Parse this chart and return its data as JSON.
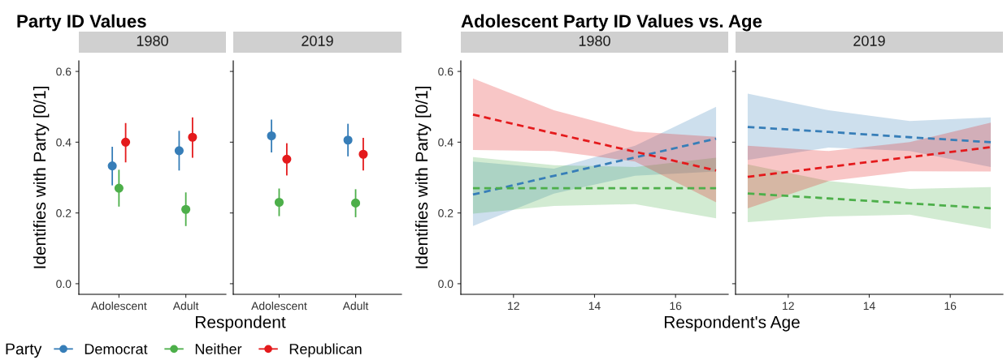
{
  "chart_data": [
    {
      "type": "scatter",
      "title": "Party ID Values",
      "subtitle": "1980",
      "xlabel": "Respondent",
      "ylabel": "Identifies with Party [0/1]",
      "categories": [
        "Adolescent",
        "Adult"
      ],
      "ylim": [
        -0.03,
        0.63
      ],
      "yticks": [
        {
          "value": 0,
          "label": "0.0"
        },
        {
          "value": 0.2,
          "label": "0.2"
        },
        {
          "value": 0.4,
          "label": "0.4"
        },
        {
          "value": 0.6,
          "label": "0.6"
        }
      ],
      "marker": "circle",
      "grid": false,
      "legend": "bottom",
      "legend_title": "Party",
      "series": [
        {
          "name": "Democrat",
          "color": "#377eb8",
          "values": [
            0.333,
            0.376
          ],
          "errors": [
            [
              0.28,
              0.385
            ],
            [
              0.322,
              0.43
            ]
          ]
        },
        {
          "name": "Neither",
          "color": "#4daf4a",
          "values": [
            0.27,
            0.21
          ],
          "errors": [
            [
              0.22,
              0.32
            ],
            [
              0.165,
              0.256
            ]
          ]
        },
        {
          "name": "Republican",
          "color": "#e41a1c",
          "values": [
            0.4,
            0.414
          ],
          "errors": [
            [
              0.345,
              0.452
            ],
            [
              0.358,
              0.468
            ]
          ]
        }
      ]
    },
    {
      "type": "scatter",
      "subtitle": "2019",
      "categories": [
        "Adolescent",
        "Adult"
      ],
      "ylim": [
        -0.03,
        0.63
      ],
      "yticks": [
        {
          "value": 0,
          "label": null
        },
        {
          "value": 0.2,
          "label": null
        },
        {
          "value": 0.4,
          "label": null
        },
        {
          "value": 0.6,
          "label": null
        }
      ],
      "tick_labels": "x",
      "marker": "circle",
      "grid": false,
      "series": [
        {
          "color": "#377eb8",
          "values": [
            0.418,
            0.406
          ],
          "errors": [
            [
              0.373,
              0.462
            ],
            [
              0.362,
              0.45
            ]
          ]
        },
        {
          "color": "#4daf4a",
          "values": [
            0.23,
            0.228
          ],
          "errors": [
            [
              0.193,
              0.267
            ],
            [
              0.19,
              0.265
            ]
          ]
        },
        {
          "color": "#e41a1c",
          "values": [
            0.352,
            0.366
          ],
          "errors": [
            [
              0.308,
              0.395
            ],
            [
              0.322,
              0.41
            ]
          ]
        }
      ]
    },
    {
      "type": "line",
      "title": "Adolescent Party ID Values vs. Age",
      "subtitle": "1980",
      "xlabel": "Respondent's Age",
      "ylabel": "Identifies with Party [0/1]",
      "xlim": [
        10.7,
        17.3
      ],
      "xticks": [
        12,
        14,
        16
      ],
      "ylim": [
        -0.03,
        0.63
      ],
      "yticks": [
        {
          "value": 0,
          "label": "0.0"
        },
        {
          "value": 0.2,
          "label": "0.2"
        },
        {
          "value": 0.4,
          "label": "0.4"
        },
        {
          "value": 0.6,
          "label": "0.6"
        }
      ],
      "line_style": "dashed",
      "grid": false,
      "series": [
        {
          "color": "#377eb8",
          "x": [
            11,
            13,
            15,
            17
          ],
          "values": [
            0.252,
            0.305,
            0.357,
            0.41
          ],
          "lower": [
            0.163,
            0.255,
            0.305,
            0.317
          ],
          "upper": [
            0.345,
            0.325,
            0.39,
            0.5
          ]
        },
        {
          "color": "#4daf4a",
          "x": [
            11,
            13,
            15,
            17
          ],
          "values": [
            0.27,
            0.27,
            0.27,
            0.27
          ],
          "lower": [
            0.198,
            0.22,
            0.225,
            0.185
          ],
          "upper": [
            0.358,
            0.335,
            0.33,
            0.356
          ]
        },
        {
          "color": "#e41a1c",
          "x": [
            11,
            13,
            15,
            17
          ],
          "values": [
            0.478,
            0.425,
            0.373,
            0.32
          ],
          "lower": [
            0.378,
            0.375,
            0.345,
            0.23
          ],
          "upper": [
            0.58,
            0.49,
            0.43,
            0.415
          ]
        }
      ]
    },
    {
      "type": "line",
      "subtitle": "2019",
      "xlim": [
        10.7,
        17.3
      ],
      "xticks": [
        12,
        14,
        16
      ],
      "ylim": [
        -0.03,
        0.63
      ],
      "yticks": [
        {
          "value": 0,
          "label": null
        },
        {
          "value": 0.2,
          "label": null
        },
        {
          "value": 0.4,
          "label": null
        },
        {
          "value": 0.6,
          "label": null
        }
      ],
      "tick_labels": "x",
      "line_style": "dashed",
      "grid": false,
      "series": [
        {
          "color": "#377eb8",
          "x": [
            11,
            13,
            15,
            17
          ],
          "values": [
            0.443,
            0.429,
            0.414,
            0.4
          ],
          "lower": [
            0.35,
            0.385,
            0.375,
            0.33
          ],
          "upper": [
            0.537,
            0.49,
            0.46,
            0.47
          ]
        },
        {
          "color": "#4daf4a",
          "x": [
            11,
            13,
            15,
            17
          ],
          "values": [
            0.255,
            0.241,
            0.227,
            0.213
          ],
          "lower": [
            0.174,
            0.19,
            0.195,
            0.155
          ],
          "upper": [
            0.337,
            0.29,
            0.268,
            0.273
          ]
        },
        {
          "color": "#e41a1c",
          "x": [
            11,
            13,
            15,
            17
          ],
          "values": [
            0.302,
            0.33,
            0.358,
            0.386
          ],
          "lower": [
            0.213,
            0.29,
            0.318,
            0.317
          ],
          "upper": [
            0.39,
            0.375,
            0.4,
            0.455
          ]
        }
      ]
    }
  ]
}
